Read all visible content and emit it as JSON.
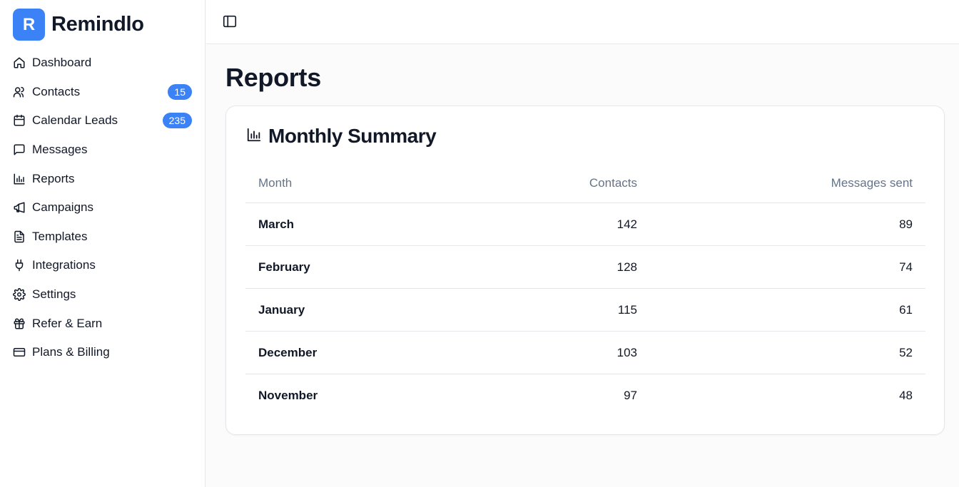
{
  "brand": {
    "logo_letter": "R",
    "name": "Remindlo",
    "accent": "#3b82f6"
  },
  "sidebar": {
    "items": [
      {
        "label": "Dashboard",
        "icon": "home-icon"
      },
      {
        "label": "Contacts",
        "icon": "users-icon",
        "badge": "15"
      },
      {
        "label": "Calendar Leads",
        "icon": "calendar-icon",
        "badge": "235"
      },
      {
        "label": "Messages",
        "icon": "message-square-icon"
      },
      {
        "label": "Reports",
        "icon": "bar-chart-icon"
      },
      {
        "label": "Campaigns",
        "icon": "megaphone-icon"
      },
      {
        "label": "Templates",
        "icon": "file-text-icon"
      },
      {
        "label": "Integrations",
        "icon": "plug-icon"
      },
      {
        "label": "Settings",
        "icon": "gear-icon"
      },
      {
        "label": "Refer & Earn",
        "icon": "gift-icon"
      },
      {
        "label": "Plans & Billing",
        "icon": "credit-card-icon"
      }
    ]
  },
  "topbar": {
    "toggle_icon": "sidebar-toggle-icon"
  },
  "page": {
    "title": "Reports"
  },
  "summary": {
    "title": "Monthly Summary",
    "icon": "bar-chart-icon",
    "columns": {
      "month": "Month",
      "contacts": "Contacts",
      "messages": "Messages sent"
    },
    "rows": [
      {
        "month": "March",
        "contacts": "142",
        "messages": "89"
      },
      {
        "month": "February",
        "contacts": "128",
        "messages": "74"
      },
      {
        "month": "January",
        "contacts": "115",
        "messages": "61"
      },
      {
        "month": "December",
        "contacts": "103",
        "messages": "52"
      },
      {
        "month": "November",
        "contacts": "97",
        "messages": "48"
      }
    ]
  }
}
